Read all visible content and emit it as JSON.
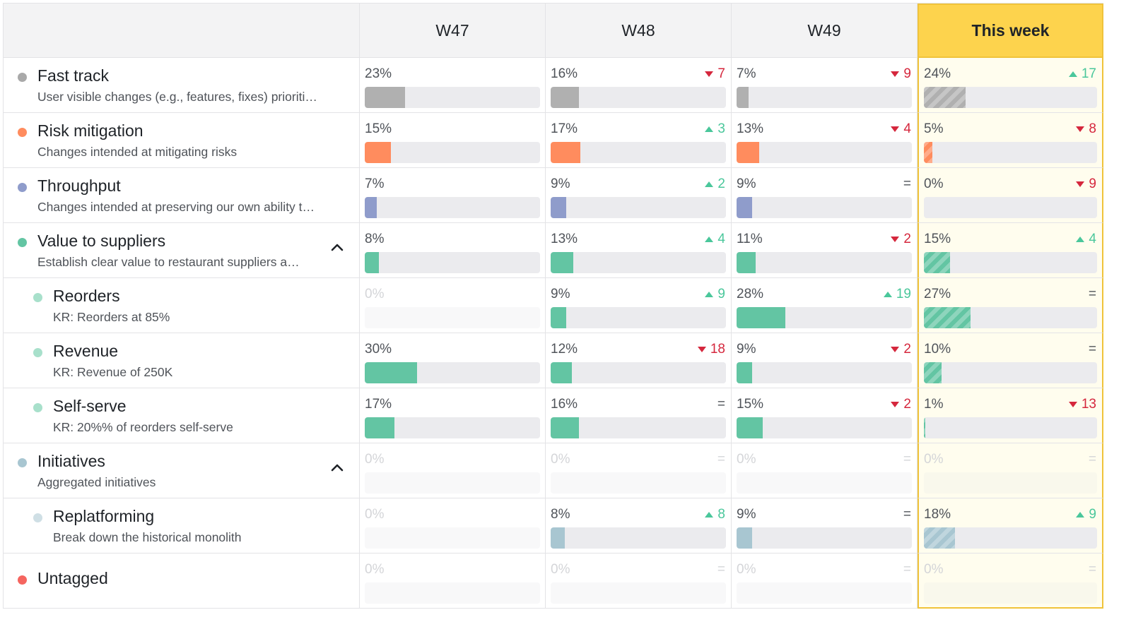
{
  "columns": [
    "W47",
    "W48",
    "W49",
    "This week"
  ],
  "colors": {
    "fast_track": "#b0b0b0",
    "risk": "#ff8c5e",
    "throughput": "#8f9ccb",
    "suppliers": "#63c5a3",
    "suppliers_child": "#a8e0cb",
    "initiatives": "#a8c6d1",
    "initiatives_child": "#cfdfe5",
    "untagged": "#f5655f",
    "highlight": "#fdd34d"
  },
  "rows": [
    {
      "title": "Fast track",
      "desc": "User visible changes (e.g., features, fixes) prioriti…",
      "color": "#b0b0b0",
      "dot": "#a9a9a9",
      "indent": 0,
      "caret": false,
      "cells": [
        {
          "text": "23%",
          "value": 23,
          "delta": "",
          "dir": ""
        },
        {
          "text": "16%",
          "value": 16,
          "delta": "7",
          "dir": "down"
        },
        {
          "text": "7%",
          "value": 7,
          "delta": "9",
          "dir": "down"
        },
        {
          "text": "24%",
          "value": 24,
          "delta": "17",
          "dir": "up"
        }
      ]
    },
    {
      "title": "Risk mitigation",
      "desc": "Changes intended at mitigating risks",
      "color": "#ff8c5e",
      "dot": "#ff8c5e",
      "indent": 0,
      "caret": false,
      "cells": [
        {
          "text": "15%",
          "value": 15,
          "delta": "",
          "dir": ""
        },
        {
          "text": "17%",
          "value": 17,
          "delta": "3",
          "dir": "up"
        },
        {
          "text": "13%",
          "value": 13,
          "delta": "4",
          "dir": "down"
        },
        {
          "text": "5%",
          "value": 5,
          "delta": "8",
          "dir": "down"
        }
      ]
    },
    {
      "title": "Throughput",
      "desc": "Changes intended at preserving our own ability t…",
      "color": "#8f9ccb",
      "dot": "#8f9ccb",
      "indent": 0,
      "caret": false,
      "cells": [
        {
          "text": "7%",
          "value": 7,
          "delta": "",
          "dir": ""
        },
        {
          "text": "9%",
          "value": 9,
          "delta": "2",
          "dir": "up"
        },
        {
          "text": "9%",
          "value": 9,
          "delta": "=",
          "dir": "eq"
        },
        {
          "text": "0%",
          "value": 0,
          "delta": "9",
          "dir": "down"
        }
      ]
    },
    {
      "title": "Value to suppliers",
      "desc": "Establish clear value to restaurant suppliers a…",
      "color": "#63c5a3",
      "dot": "#63c5a3",
      "indent": 0,
      "caret": true,
      "cells": [
        {
          "text": "8%",
          "value": 8,
          "delta": "",
          "dir": ""
        },
        {
          "text": "13%",
          "value": 13,
          "delta": "4",
          "dir": "up"
        },
        {
          "text": "11%",
          "value": 11,
          "delta": "2",
          "dir": "down"
        },
        {
          "text": "15%",
          "value": 15,
          "delta": "4",
          "dir": "up"
        }
      ]
    },
    {
      "title": "Reorders",
      "desc": "KR: Reorders at 85%",
      "color": "#63c5a3",
      "dot": "#a8e0cb",
      "indent": 1,
      "caret": false,
      "cells": [
        {
          "text": "0%",
          "value": 0,
          "delta": "",
          "dir": "",
          "muted": true
        },
        {
          "text": "9%",
          "value": 9,
          "delta": "9",
          "dir": "up"
        },
        {
          "text": "28%",
          "value": 28,
          "delta": "19",
          "dir": "up"
        },
        {
          "text": "27%",
          "value": 27,
          "delta": "=",
          "dir": "eq"
        }
      ]
    },
    {
      "title": "Revenue",
      "desc": "KR: Revenue of 250K",
      "color": "#63c5a3",
      "dot": "#a8e0cb",
      "indent": 1,
      "caret": false,
      "cells": [
        {
          "text": "30%",
          "value": 30,
          "delta": "",
          "dir": ""
        },
        {
          "text": "12%",
          "value": 12,
          "delta": "18",
          "dir": "down"
        },
        {
          "text": "9%",
          "value": 9,
          "delta": "2",
          "dir": "down"
        },
        {
          "text": "10%",
          "value": 10,
          "delta": "=",
          "dir": "eq"
        }
      ]
    },
    {
      "title": "Self-serve",
      "desc": "KR: 20%% of reorders self-serve",
      "color": "#63c5a3",
      "dot": "#a8e0cb",
      "indent": 1,
      "caret": false,
      "cells": [
        {
          "text": "17%",
          "value": 17,
          "delta": "",
          "dir": ""
        },
        {
          "text": "16%",
          "value": 16,
          "delta": "=",
          "dir": "eq"
        },
        {
          "text": "15%",
          "value": 15,
          "delta": "2",
          "dir": "down"
        },
        {
          "text": "1%",
          "value": 1,
          "delta": "13",
          "dir": "down"
        }
      ]
    },
    {
      "title": "Initiatives",
      "desc": "Aggregated initiatives",
      "color": "#a8c6d1",
      "dot": "#a8c6d1",
      "indent": 0,
      "caret": true,
      "cells": [
        {
          "text": "0%",
          "value": 0,
          "delta": "",
          "dir": "",
          "muted": true
        },
        {
          "text": "0%",
          "value": 0,
          "delta": "=",
          "dir": "eq",
          "muted": true
        },
        {
          "text": "0%",
          "value": 0,
          "delta": "=",
          "dir": "eq",
          "muted": true
        },
        {
          "text": "0%",
          "value": 0,
          "delta": "=",
          "dir": "eq",
          "muted": true
        }
      ]
    },
    {
      "title": "Replatforming",
      "desc": "Break down the historical monolith",
      "color": "#a8c6d1",
      "dot": "#cfdfe5",
      "indent": 1,
      "caret": false,
      "cells": [
        {
          "text": "0%",
          "value": 0,
          "delta": "",
          "dir": "",
          "muted": true
        },
        {
          "text": "8%",
          "value": 8,
          "delta": "8",
          "dir": "up"
        },
        {
          "text": "9%",
          "value": 9,
          "delta": "=",
          "dir": "eq"
        },
        {
          "text": "18%",
          "value": 18,
          "delta": "9",
          "dir": "up"
        }
      ]
    },
    {
      "title": "Untagged",
      "desc": "",
      "color": "#f5655f",
      "dot": "#f5655f",
      "indent": 0,
      "caret": false,
      "cells": [
        {
          "text": "0%",
          "value": 0,
          "delta": "",
          "dir": "",
          "muted": true
        },
        {
          "text": "0%",
          "value": 0,
          "delta": "=",
          "dir": "eq",
          "muted": true
        },
        {
          "text": "0%",
          "value": 0,
          "delta": "=",
          "dir": "eq",
          "muted": true
        },
        {
          "text": "0%",
          "value": 0,
          "delta": "=",
          "dir": "eq",
          "muted": true
        }
      ]
    }
  ]
}
